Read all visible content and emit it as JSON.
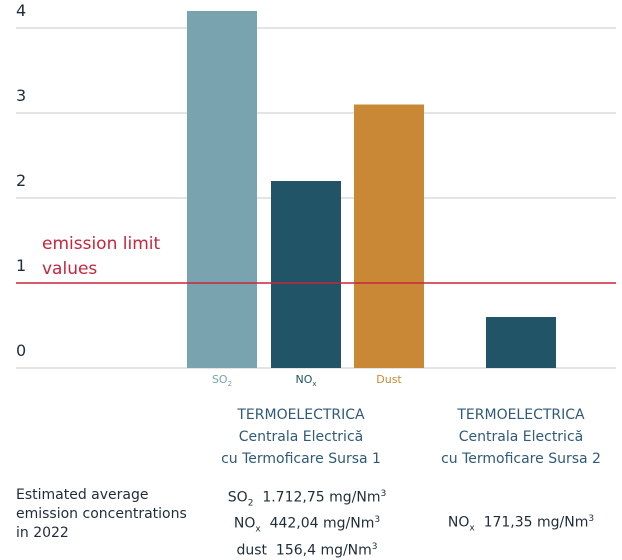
{
  "chart_data": {
    "type": "bar",
    "ylim": [
      0,
      4.2
    ],
    "yticks": [
      0,
      1,
      2,
      3,
      4
    ],
    "grid": true,
    "threshold": {
      "label": "emission limit values",
      "value": 1,
      "color": "#c8243b"
    },
    "groups": [
      {
        "plant": [
          "TERMOELECTRICA",
          "Centrala Electrică",
          "cu Termoficare Sursa 1"
        ],
        "bars": [
          {
            "category": "SO",
            "sub": "2",
            "value": 4.2,
            "color": "#7aa3b0"
          },
          {
            "category": "NO",
            "sub": "x",
            "value": 2.2,
            "color": "#215467"
          },
          {
            "category": "Dust",
            "sub": "",
            "value": 3.1,
            "color": "#c98836"
          }
        ],
        "emissions": [
          {
            "pollutant": "SO",
            "sub": "2",
            "value": "1.712,75 mg/Nm",
            "sup": "3"
          },
          {
            "pollutant": "NO",
            "sub": "x",
            "value": "442,04 mg/Nm",
            "sup": "3"
          },
          {
            "pollutant": "dust",
            "sub": "",
            "value": "156,4 mg/Nm",
            "sup": "3"
          }
        ]
      },
      {
        "plant": [
          "TERMOELECTRICA",
          "Centrala Electrică",
          "cu Termoficare Sursa 2"
        ],
        "bars": [
          {
            "category": "NO",
            "sub": "x",
            "value": 0.6,
            "color": "#215467"
          }
        ],
        "emissions": [
          {
            "pollutant": "NO",
            "sub": "x",
            "value": "171,35 mg/Nm",
            "sup": "3"
          }
        ]
      }
    ]
  },
  "caption": [
    "Estimated average",
    "emission concentrations",
    "in 2022"
  ],
  "colors": {
    "grid": "#c9c9c9",
    "threshold": "#c8243b"
  }
}
